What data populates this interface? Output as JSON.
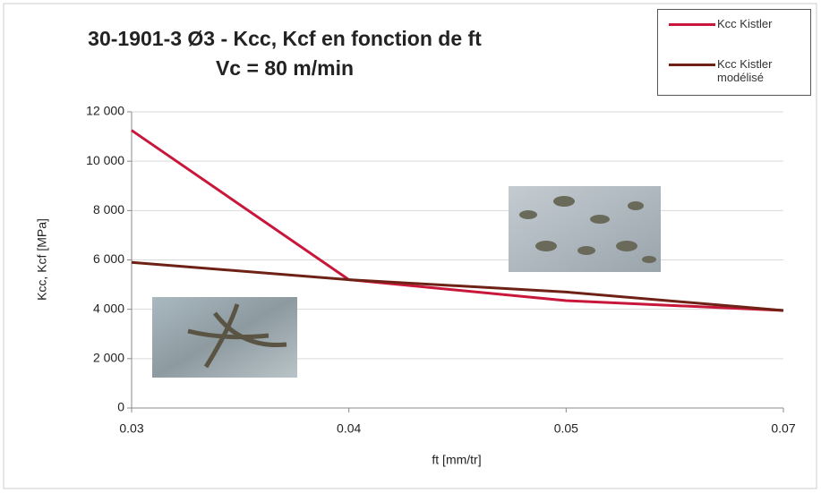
{
  "chart_data": {
    "type": "line",
    "title": "30-1901-3 Ø3 - Kcc, Kcf en fonction de ft",
    "subtitle": "Vc = 80 m/min",
    "x_label": "ft [mm/tr]",
    "y_label": "Kcc, Kcf [MPa]",
    "categories": [
      "0.03",
      "0.04",
      "0.05",
      "0.07"
    ],
    "series": [
      {
        "name": "Kcc Kistler",
        "color": "#c8173a",
        "values": [
          11250,
          5200,
          4350,
          3950
        ]
      },
      {
        "name": "Kcc Kistler modélisé",
        "color": "#6e2216",
        "values": [
          5900,
          5200,
          4700,
          3950
        ]
      }
    ],
    "ylim": [
      0,
      12000
    ],
    "yticks": [
      0,
      {
        "value": 2000,
        "label": "2 000"
      },
      {
        "value": 4000,
        "label": "4 000"
      },
      {
        "value": 6000,
        "label": "6 000"
      },
      {
        "value": 8000,
        "label": "8 000"
      },
      {
        "value": 10000,
        "label": "10 000"
      },
      {
        "value": 12000,
        "label": "12 000"
      }
    ],
    "grid": true,
    "legend": "top-right"
  }
}
